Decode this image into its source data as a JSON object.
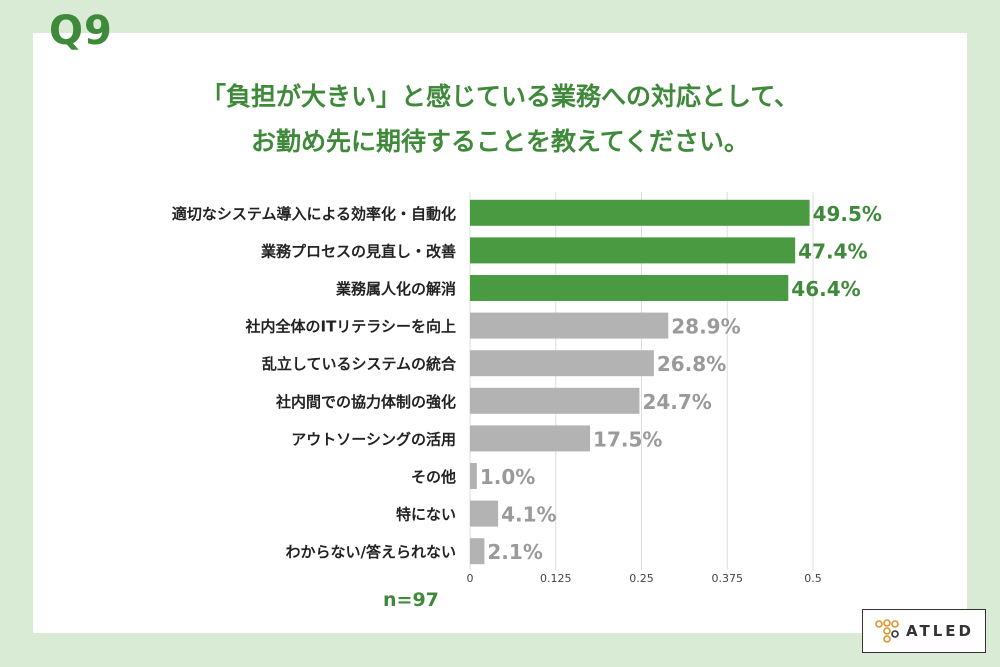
{
  "question_label": "Q9",
  "title_lines": [
    "「負担が大きい」と感じている業務への対応として、",
    "お勤め先に期待することを教えてください。"
  ],
  "n_label": "n=97",
  "logo_text": "ATLED",
  "colors": {
    "background": "#d9ebd4",
    "accent_green": "#3f8a3a",
    "bar_green": "#4a9a41",
    "bar_gray": "#b3b3b3",
    "value_gray": "#9a9a9a"
  },
  "chart_data": {
    "type": "bar",
    "orientation": "horizontal",
    "categories": [
      "適切なシステム導入による効率化・自動化",
      "業務プロセスの見直し・改善",
      "業務属人化の解消",
      "社内全体のITリテラシーを向上",
      "乱立しているシステムの統合",
      "社内間での協力体制の強化",
      "アウトソーシングの活用",
      "その他",
      "特にない",
      "わからない/答えられない"
    ],
    "values": [
      0.495,
      0.474,
      0.464,
      0.289,
      0.268,
      0.247,
      0.175,
      0.01,
      0.041,
      0.021
    ],
    "value_labels": [
      "49.5%",
      "47.4%",
      "46.4%",
      "28.9%",
      "26.8%",
      "24.7%",
      "17.5%",
      "1.0%",
      "4.1%",
      "2.1%"
    ],
    "highlight_top": 3,
    "xlim": [
      0,
      0.5
    ],
    "xticks": [
      0,
      0.125,
      0.25,
      0.375,
      0.5
    ],
    "xtick_labels": [
      "0",
      "0.125",
      "0.25",
      "0.375",
      "0.5"
    ],
    "grid": true
  }
}
